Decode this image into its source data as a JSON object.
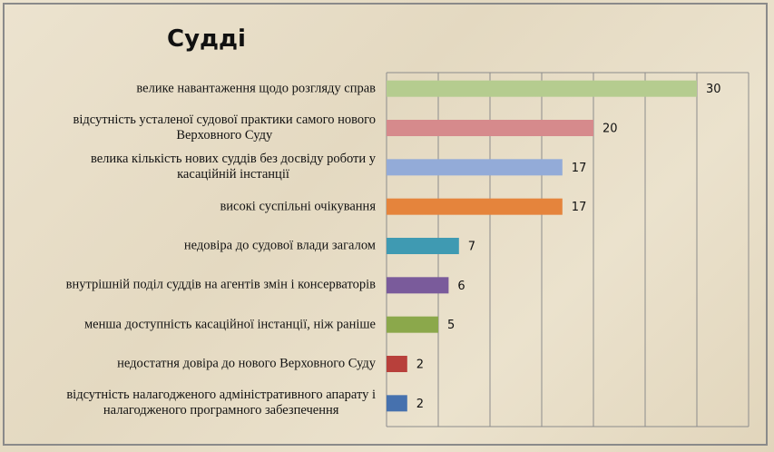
{
  "chart_data": {
    "type": "bar",
    "orientation": "horizontal",
    "title": "Судді",
    "categories": [
      "велике навантаження щодо розгляду справ",
      "відсутність усталеної судової практики самого нового\nВерховного Суду",
      "велика кількість нових суддів без досвіду роботи у\nкасаційній інстанції",
      "високі суспільні очікування",
      "недовіра до судової влади загалом",
      "внутрішній поділ суддів на агентів змін і консерваторів",
      "менша доступність касаційної інстанції, ніж раніше",
      "недостатня довіра до нового Верховного Суду",
      "відсутність налагодженого адміністративного апарату і\nналагодженого програмного забезпечення"
    ],
    "values": [
      30,
      20,
      17,
      17,
      7,
      6,
      5,
      2,
      2
    ],
    "colors": [
      "#b5cc8f",
      "#d68a8c",
      "#93abd8",
      "#e5843c",
      "#3f9ab2",
      "#7a5b9b",
      "#8ba84b",
      "#b8403b",
      "#4671ae"
    ],
    "xlim": [
      0,
      35
    ],
    "xticks": [
      0,
      5,
      10,
      15,
      20,
      25,
      30,
      35
    ],
    "grid": true
  }
}
